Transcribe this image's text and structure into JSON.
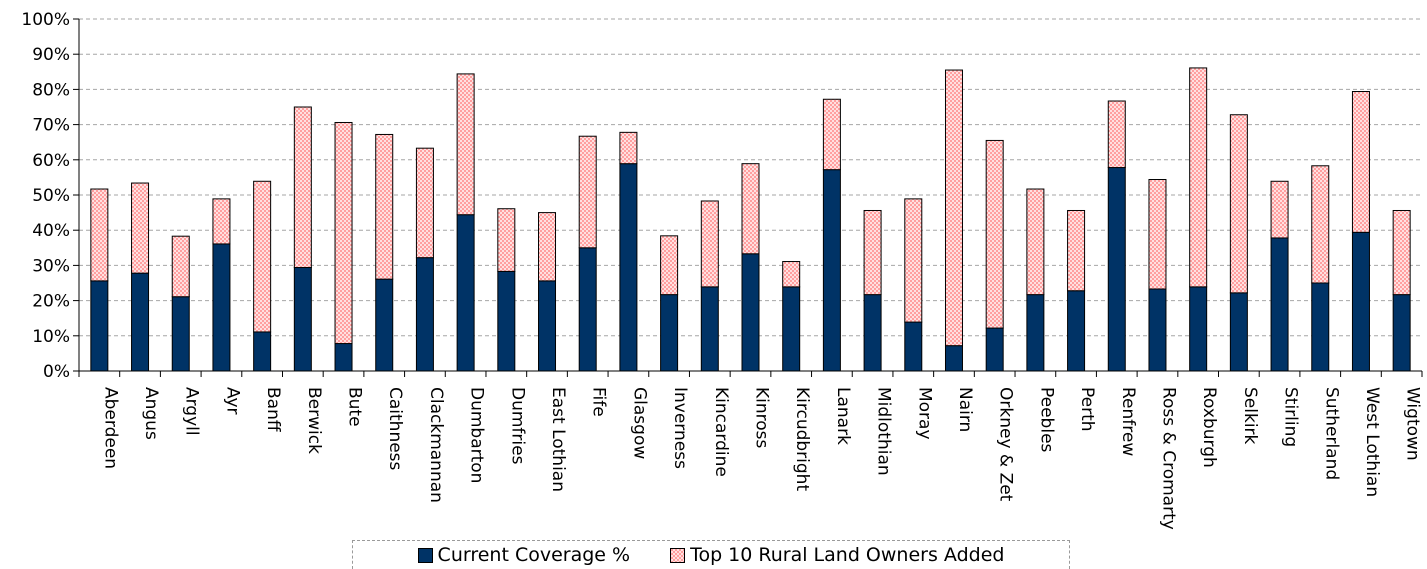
{
  "chart_data": {
    "type": "bar",
    "stacked": true,
    "title": "",
    "xlabel": "",
    "ylabel": "",
    "ylim": [
      0,
      100
    ],
    "y_tick_labels": [
      "0%",
      "10%",
      "20%",
      "30%",
      "40%",
      "50%",
      "60%",
      "70%",
      "80%",
      "90%",
      "100%"
    ],
    "grid": true,
    "legend_position": "bottom",
    "categories": [
      "Aberdeen",
      "Angus",
      "Argyll",
      "Ayr",
      "Banff",
      "Berwick",
      "Bute",
      "Caithness",
      "Clackmannan",
      "Dumbarton",
      "Dumfries",
      "East Lothian",
      "Fife",
      "Glasgow",
      "Inverness",
      "Kincardine",
      "Kinross",
      "Kircudbright",
      "Lanark",
      "Midlothian",
      "Moray",
      "Nairn",
      "Orkney & Zet",
      "Peebles",
      "Perth",
      "Renfrew",
      "Ross & Cromarty",
      "Roxburgh",
      "Selkirk",
      "Stirling",
      "Sutherland",
      "West Lothian",
      "Wigtown"
    ],
    "series": [
      {
        "name": "Current Coverage %",
        "color": "#003366",
        "values": [
          25.6,
          27.8,
          21.1,
          36.1,
          11.1,
          29.4,
          7.8,
          26.1,
          32.2,
          44.4,
          28.3,
          25.6,
          35.0,
          58.9,
          21.7,
          23.9,
          33.3,
          23.9,
          57.2,
          21.7,
          13.9,
          7.2,
          12.2,
          21.7,
          22.8,
          57.8,
          23.3,
          23.9,
          22.2,
          37.8,
          25.0,
          39.4,
          21.7
        ]
      },
      {
        "name": "Top 10 Rural Land Owners Added",
        "color": "#ff9999",
        "values": [
          26.1,
          25.6,
          17.2,
          12.8,
          42.8,
          45.6,
          62.8,
          41.1,
          31.1,
          40.0,
          17.8,
          19.4,
          31.7,
          8.9,
          16.7,
          24.4,
          25.6,
          7.2,
          20.0,
          23.9,
          35.0,
          78.3,
          53.3,
          30.0,
          22.8,
          18.9,
          31.1,
          62.2,
          50.6,
          16.1,
          33.3,
          40.0,
          23.9
        ]
      }
    ]
  },
  "legend": {
    "items": [
      {
        "label": "Current Coverage %",
        "color": "#003366",
        "pattern": "solid"
      },
      {
        "label": "Top 10 Rural Land Owners Added",
        "color": "#ff9999",
        "pattern": "checkered"
      }
    ]
  }
}
